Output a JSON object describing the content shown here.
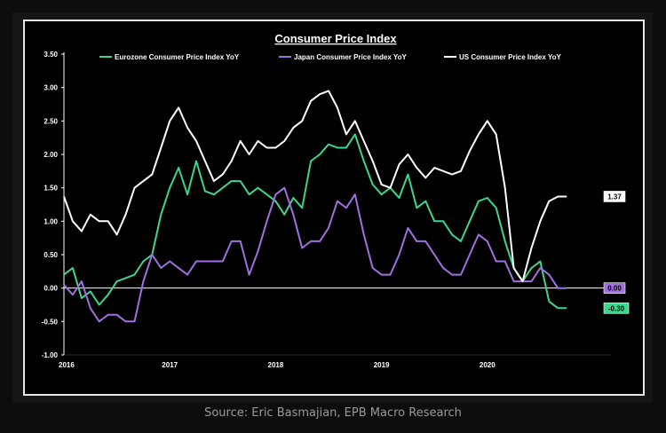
{
  "source_note": "Source: Eric Basmajian, EPB Macro Research",
  "chart_data": {
    "type": "line",
    "title": "Consumer Price Index",
    "xlabel": "",
    "ylabel": "",
    "ylim": [
      -1.0,
      3.5
    ],
    "yticks": [
      "3.50",
      "3.00",
      "2.50",
      "2.00",
      "1.50",
      "1.00",
      "0.50",
      "0.00",
      "-0.50",
      "-1.00"
    ],
    "xticks": [
      "2016",
      "2017",
      "2018",
      "2019",
      "2020"
    ],
    "legend_position": "top",
    "grid": false,
    "x_months": [
      "2016-01",
      "2016-02",
      "2016-03",
      "2016-04",
      "2016-05",
      "2016-06",
      "2016-07",
      "2016-08",
      "2016-09",
      "2016-10",
      "2016-11",
      "2016-12",
      "2017-01",
      "2017-02",
      "2017-03",
      "2017-04",
      "2017-05",
      "2017-06",
      "2017-07",
      "2017-08",
      "2017-09",
      "2017-10",
      "2017-11",
      "2017-12",
      "2018-01",
      "2018-02",
      "2018-03",
      "2018-04",
      "2018-05",
      "2018-06",
      "2018-07",
      "2018-08",
      "2018-09",
      "2018-10",
      "2018-11",
      "2018-12",
      "2019-01",
      "2019-02",
      "2019-03",
      "2019-04",
      "2019-05",
      "2019-06",
      "2019-07",
      "2019-08",
      "2019-09",
      "2019-10",
      "2019-11",
      "2019-12",
      "2020-01",
      "2020-02",
      "2020-03",
      "2020-04",
      "2020-05",
      "2020-06",
      "2020-07",
      "2020-08",
      "2020-09",
      "2020-10"
    ],
    "series": [
      {
        "name": "Eurozone Consumer Price Index YoY",
        "color": "#3dd68c",
        "values": [
          0.2,
          0.3,
          -0.15,
          -0.05,
          -0.25,
          -0.1,
          0.1,
          0.15,
          0.2,
          0.4,
          0.5,
          1.1,
          1.5,
          1.8,
          1.4,
          1.9,
          1.45,
          1.4,
          1.5,
          1.6,
          1.6,
          1.4,
          1.5,
          1.4,
          1.3,
          1.1,
          1.35,
          1.2,
          1.9,
          2.0,
          2.15,
          2.1,
          2.1,
          2.3,
          1.9,
          1.55,
          1.4,
          1.5,
          1.35,
          1.7,
          1.2,
          1.3,
          1.0,
          1.0,
          0.8,
          0.7,
          1.0,
          1.3,
          1.35,
          1.2,
          0.7,
          0.3,
          0.1,
          0.3,
          0.4,
          -0.2,
          -0.3,
          -0.3
        ]
      },
      {
        "name": "Japan Consumer Price Index YoY",
        "color": "#a070e0",
        "values": [
          0.05,
          -0.1,
          0.1,
          -0.3,
          -0.5,
          -0.4,
          -0.4,
          -0.5,
          -0.5,
          0.1,
          0.5,
          0.3,
          0.4,
          0.3,
          0.2,
          0.4,
          0.4,
          0.4,
          0.4,
          0.7,
          0.7,
          0.2,
          0.55,
          1.0,
          1.4,
          1.5,
          1.1,
          0.6,
          0.7,
          0.7,
          0.9,
          1.3,
          1.2,
          1.4,
          0.8,
          0.3,
          0.2,
          0.2,
          0.5,
          0.9,
          0.7,
          0.7,
          0.5,
          0.3,
          0.2,
          0.2,
          0.5,
          0.8,
          0.7,
          0.4,
          0.4,
          0.1,
          0.1,
          0.1,
          0.3,
          0.2,
          0.0,
          0.0
        ]
      },
      {
        "name": "US Consumer Price Index YoY",
        "color": "#ffffff",
        "values": [
          1.37,
          1.0,
          0.85,
          1.1,
          1.0,
          1.0,
          0.8,
          1.1,
          1.5,
          1.6,
          1.7,
          2.1,
          2.5,
          2.7,
          2.4,
          2.2,
          1.9,
          1.6,
          1.7,
          1.9,
          2.2,
          2.0,
          2.2,
          2.1,
          2.1,
          2.2,
          2.4,
          2.5,
          2.8,
          2.9,
          2.95,
          2.7,
          2.3,
          2.5,
          2.2,
          1.9,
          1.55,
          1.5,
          1.85,
          2.0,
          1.8,
          1.65,
          1.8,
          1.75,
          1.7,
          1.75,
          2.05,
          2.3,
          2.5,
          2.3,
          1.5,
          0.3,
          0.1,
          0.6,
          1.0,
          1.3,
          1.37,
          1.37
        ]
      }
    ],
    "annotations": [
      {
        "text": "1.37",
        "value": 1.37,
        "bg": "#ffffff",
        "fg": "#000000"
      },
      {
        "text": "0.00",
        "value": 0.0,
        "bg": "#a070e0",
        "fg": "#000000"
      },
      {
        "text": "-0.30",
        "value": -0.3,
        "bg": "#3dd68c",
        "fg": "#000000"
      }
    ]
  }
}
